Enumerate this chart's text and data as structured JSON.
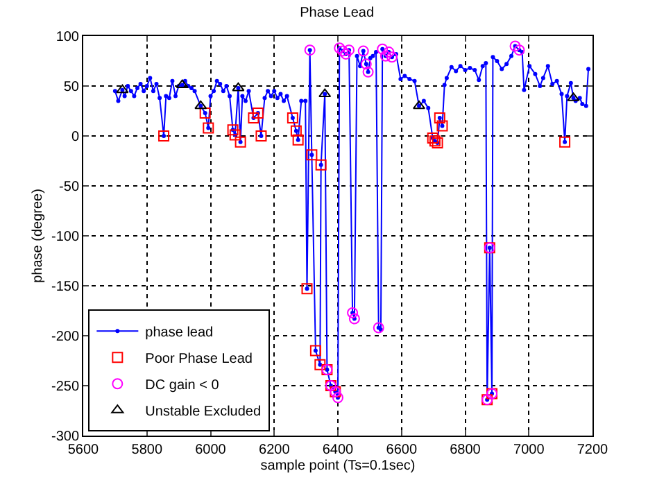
{
  "chart_data": {
    "type": "line",
    "title": "Phase Lead",
    "xlabel": "sample point (Ts=0.1sec)",
    "ylabel": "phase (degree)",
    "xlim": [
      5600,
      7200
    ],
    "xticks": [
      5600,
      5800,
      6000,
      6200,
      6400,
      6600,
      6800,
      7000,
      7200
    ],
    "ylim": [
      -300,
      100
    ],
    "yticks": [
      -300,
      -250,
      -200,
      -150,
      -100,
      -50,
      0,
      50,
      100
    ],
    "grid": true,
    "legend": "bottom left",
    "line_style": "solid",
    "series": [
      {
        "name": "phase lead",
        "marker": "circle",
        "color": "#0000ff",
        "x": [
          5700,
          5710,
          5723,
          5730,
          5740,
          5750,
          5760,
          5770,
          5780,
          5790,
          5800,
          5810,
          5820,
          5830,
          5840,
          5853,
          5860,
          5870,
          5880,
          5890,
          5900,
          5911,
          5920,
          5930,
          5940,
          5950,
          5969,
          5983,
          5993,
          6000,
          6010,
          6020,
          6030,
          6040,
          6050,
          6060,
          6070,
          6077,
          6087,
          6094,
          6100,
          6110,
          6120,
          6135,
          6149,
          6159,
          6170,
          6180,
          6190,
          6200,
          6210,
          6220,
          6230,
          6240,
          6258,
          6269,
          6275,
          6285,
          6298,
          6303,
          6312,
          6318,
          6330,
          6344,
          6347,
          6359,
          6366,
          6378,
          6392,
          6400,
          6405,
          6415,
          6425,
          6435,
          6446,
          6452,
          6460,
          6470,
          6480,
          6489,
          6495,
          6502,
          6510,
          6520,
          6528,
          6535,
          6540,
          6550,
          6560,
          6570,
          6583,
          6597,
          6610,
          6625,
          6641,
          6655,
          6670,
          6684,
          6698,
          6705,
          6713,
          6720,
          6728,
          6735,
          6742,
          6757,
          6771,
          6785,
          6800,
          6815,
          6830,
          6843,
          6855,
          6865,
          6869,
          6877,
          6884,
          6887,
          6900,
          6915,
          6930,
          6945,
          6957,
          6970,
          6979,
          6985,
          7002,
          7020,
          7035,
          7045,
          7060,
          7074,
          7088,
          7103,
          7113,
          7120,
          7132,
          7140,
          7147,
          7160,
          7168,
          7180,
          7187
        ],
        "values": [
          45,
          35,
          46,
          40,
          50,
          45,
          40,
          48,
          52,
          45,
          50,
          58,
          45,
          52,
          38,
          0,
          40,
          38,
          55,
          40,
          50,
          51,
          55,
          50,
          48,
          45,
          30,
          23,
          8,
          40,
          45,
          55,
          52,
          45,
          50,
          40,
          6,
          1,
          48,
          -6,
          40,
          35,
          45,
          18,
          23,
          0,
          38,
          45,
          40,
          45,
          38,
          42,
          35,
          40,
          18,
          5,
          -4,
          35,
          35,
          -153,
          86,
          -19,
          -215,
          -229,
          -29,
          42,
          -234,
          -250,
          -256,
          -262,
          88,
          85,
          82,
          86,
          -177,
          -183,
          80,
          70,
          85,
          72,
          64,
          78,
          80,
          84,
          -192,
          -194,
          87,
          80,
          84,
          79,
          82,
          57,
          60,
          57,
          55,
          30,
          35,
          28,
          -2,
          -5,
          -7,
          18,
          10,
          51,
          58,
          69,
          65,
          70,
          66,
          68,
          66,
          56,
          70,
          73,
          -264,
          -112,
          -258,
          79,
          75,
          67,
          72,
          80,
          90,
          86,
          84,
          46,
          70,
          62,
          50,
          58,
          70,
          52,
          55,
          42,
          -6,
          40,
          53,
          38,
          35,
          38,
          32,
          30,
          67
        ]
      },
      {
        "name": "Poor Phase Lead",
        "type": "scatter",
        "marker": "square",
        "color": "#ff0000",
        "x": [
          5853,
          5983,
          5993,
          6070,
          6077,
          6094,
          6135,
          6149,
          6159,
          6258,
          6269,
          6275,
          6303,
          6318,
          6330,
          6344,
          6347,
          6366,
          6378,
          6392,
          6698,
          6705,
          6713,
          6720,
          6728,
          6869,
          6877,
          6884,
          7113
        ],
        "values": [
          0,
          23,
          8,
          6,
          1,
          -6,
          18,
          23,
          0,
          18,
          5,
          -4,
          -153,
          -19,
          -215,
          -229,
          -29,
          -234,
          -250,
          -256,
          -2,
          -5,
          -7,
          18,
          10,
          -264,
          -112,
          -258,
          -6
        ]
      },
      {
        "name": "DC gain < 0",
        "type": "scatter",
        "marker": "circle",
        "color": "#ff00ff",
        "x": [
          6312,
          6366,
          6378,
          6392,
          6400,
          6405,
          6415,
          6425,
          6435,
          6446,
          6452,
          6480,
          6489,
          6495,
          6528,
          6540,
          6550,
          6560,
          6570,
          6869,
          6877,
          6884,
          6957,
          6970
        ],
        "values": [
          86,
          -234,
          -250,
          -256,
          -262,
          88,
          85,
          82,
          86,
          -177,
          -183,
          85,
          72,
          64,
          -192,
          87,
          80,
          84,
          79,
          -264,
          -112,
          -258,
          90,
          86
        ]
      },
      {
        "name": "Unstable Excluded",
        "type": "scatter",
        "marker": "triangle",
        "color": "#000000",
        "x": [
          5723,
          5911,
          5969,
          6087,
          6359,
          6655,
          7140
        ],
        "values": [
          46,
          51,
          30,
          48,
          42,
          30,
          38
        ]
      }
    ]
  }
}
